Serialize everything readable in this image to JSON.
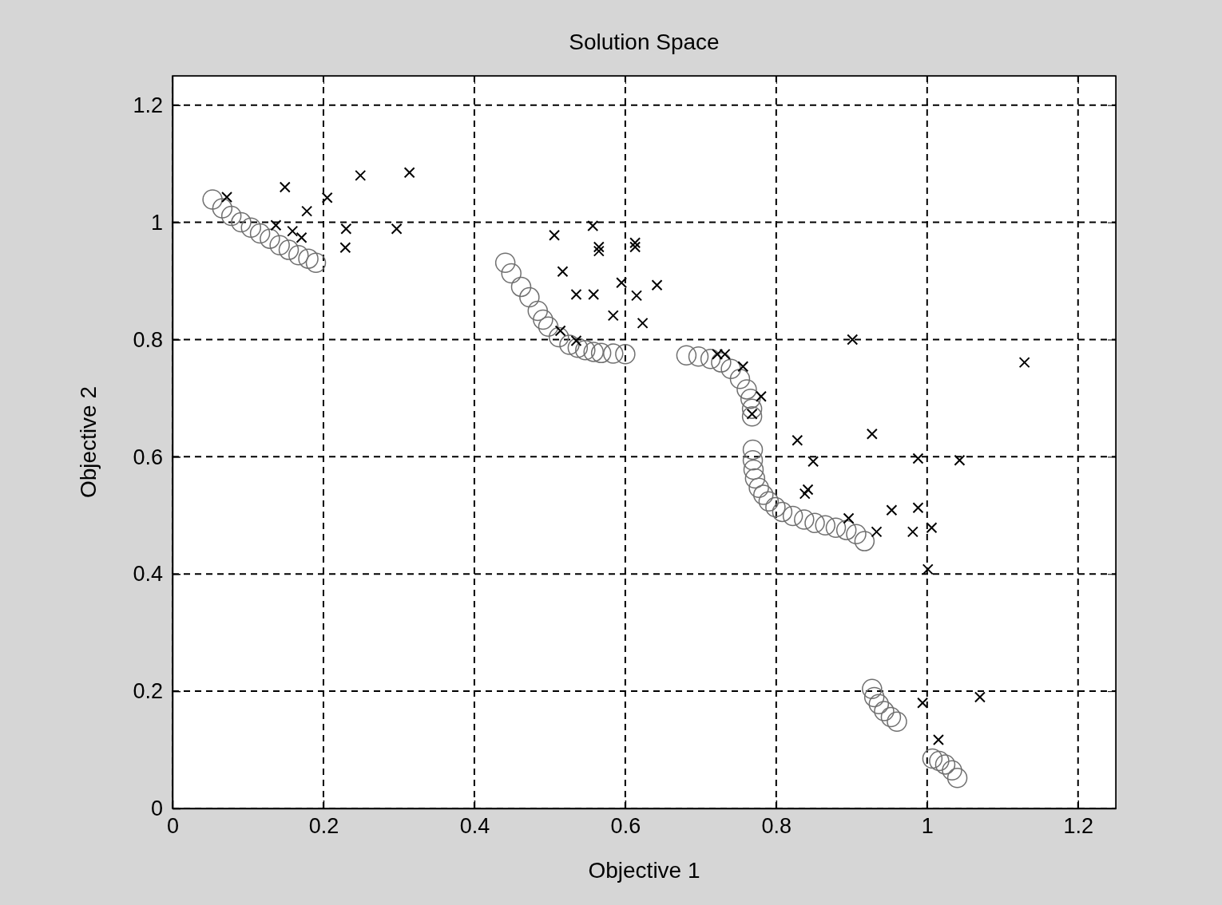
{
  "chart_data": {
    "type": "scatter",
    "title": "Solution Space",
    "xlabel": "Objective 1",
    "ylabel": "Objective 2",
    "xlim": [
      0,
      1.25
    ],
    "ylim": [
      0,
      1.25
    ],
    "xticks": [
      0,
      0.2,
      0.4,
      0.6,
      0.8,
      1,
      1.2
    ],
    "yticks": [
      0,
      0.2,
      0.4,
      0.6,
      0.8,
      1,
      1.2
    ],
    "grid": true,
    "series": [
      {
        "color": "#707070",
        "marker": "circle",
        "x": [
          0.053,
          0.066,
          0.078,
          0.091,
          0.104,
          0.116,
          0.129,
          0.142,
          0.154,
          0.167,
          0.18,
          0.19,
          0.441,
          0.449,
          0.462,
          0.473,
          0.484,
          0.491,
          0.498,
          0.512,
          0.526,
          0.537,
          0.547,
          0.558,
          0.568,
          0.584,
          0.6,
          0.681,
          0.697,
          0.713,
          0.727,
          0.74,
          0.752,
          0.761,
          0.766,
          0.768,
          0.768,
          0.769,
          0.769,
          0.77,
          0.772,
          0.777,
          0.783,
          0.79,
          0.799,
          0.808,
          0.822,
          0.837,
          0.851,
          0.865,
          0.879,
          0.893,
          0.906,
          0.917,
          0.927,
          0.93,
          0.936,
          0.943,
          0.952,
          0.96,
          1.007,
          1.016,
          1.024,
          1.033,
          1.04
        ],
        "values": [
          1.039,
          1.024,
          1.011,
          1.0,
          0.991,
          0.981,
          0.972,
          0.961,
          0.953,
          0.944,
          0.938,
          0.931,
          0.931,
          0.913,
          0.89,
          0.872,
          0.849,
          0.834,
          0.822,
          0.804,
          0.791,
          0.786,
          0.782,
          0.779,
          0.777,
          0.776,
          0.775,
          0.773,
          0.771,
          0.767,
          0.761,
          0.75,
          0.733,
          0.715,
          0.699,
          0.682,
          0.669,
          0.612,
          0.594,
          0.578,
          0.563,
          0.547,
          0.535,
          0.524,
          0.514,
          0.506,
          0.499,
          0.493,
          0.487,
          0.483,
          0.479,
          0.475,
          0.468,
          0.456,
          0.204,
          0.19,
          0.178,
          0.166,
          0.156,
          0.148,
          0.085,
          0.081,
          0.075,
          0.065,
          0.052
        ]
      },
      {
        "color": "#000000",
        "marker": "cross",
        "x": [
          0.072,
          0.149,
          0.137,
          0.159,
          0.171,
          0.178,
          0.205,
          0.249,
          0.314,
          0.23,
          0.229,
          0.297,
          0.506,
          0.557,
          0.565,
          0.565,
          0.613,
          0.613,
          0.517,
          0.595,
          0.615,
          0.642,
          0.535,
          0.558,
          0.584,
          0.623,
          0.514,
          0.535,
          0.901,
          0.722,
          0.732,
          0.756,
          0.78,
          0.768,
          0.828,
          0.927,
          0.849,
          0.842,
          0.838,
          0.896,
          0.933,
          1.129,
          0.953,
          0.988,
          0.988,
          1.043,
          0.981,
          1.006,
          1.001,
          0.994,
          1.07,
          1.015
        ],
        "values": [
          1.043,
          1.06,
          0.995,
          0.985,
          0.974,
          1.019,
          1.042,
          1.08,
          1.085,
          0.989,
          0.957,
          0.989,
          0.978,
          0.994,
          0.958,
          0.951,
          0.958,
          0.965,
          0.916,
          0.897,
          0.875,
          0.893,
          0.877,
          0.877,
          0.841,
          0.828,
          0.815,
          0.798,
          0.8,
          0.775,
          0.775,
          0.754,
          0.703,
          0.673,
          0.628,
          0.639,
          0.592,
          0.544,
          0.537,
          0.495,
          0.472,
          0.761,
          0.509,
          0.513,
          0.597,
          0.594,
          0.472,
          0.479,
          0.408,
          0.18,
          0.19,
          0.117
        ]
      }
    ]
  }
}
